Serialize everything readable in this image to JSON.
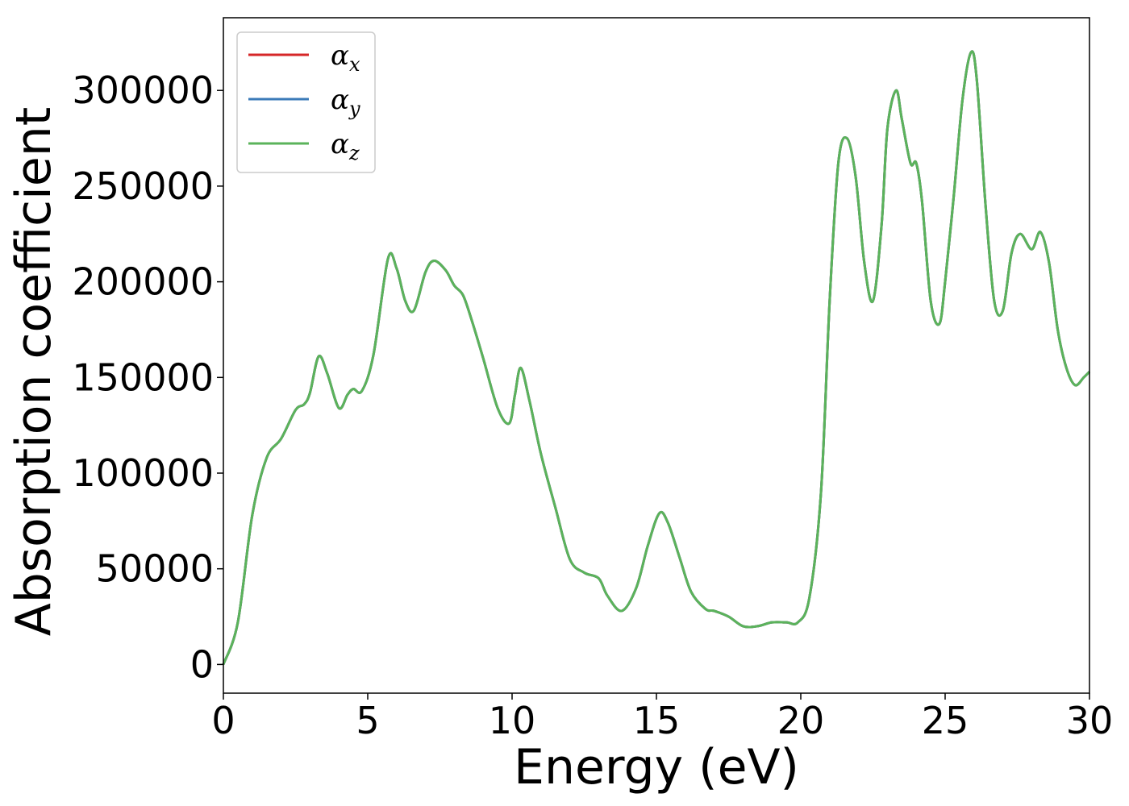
{
  "chart_data": {
    "type": "line",
    "xlabel": "Energy (eV)",
    "ylabel": "Absorption coefficient",
    "xlim": [
      0,
      30
    ],
    "ylim": [
      -15000,
      338000
    ],
    "xticks": [
      0,
      5,
      10,
      15,
      20,
      25,
      30
    ],
    "yticks": [
      0,
      50000,
      100000,
      150000,
      200000,
      250000,
      300000
    ],
    "grid": false,
    "legend_position": "top-left",
    "x": [
      0,
      0.5,
      1.0,
      1.5,
      2.0,
      2.5,
      2.8,
      3.0,
      3.3,
      3.6,
      4.0,
      4.3,
      4.5,
      4.8,
      5.2,
      5.7,
      6.0,
      6.3,
      6.6,
      7.0,
      7.3,
      7.7,
      8.0,
      8.3,
      8.6,
      9.0,
      9.5,
      9.9,
      10.1,
      10.3,
      10.6,
      11.0,
      11.5,
      12.0,
      12.5,
      13.0,
      13.3,
      13.8,
      14.3,
      14.7,
      15.1,
      15.4,
      15.8,
      16.2,
      16.7,
      17.0,
      17.5,
      18.0,
      18.5,
      19.0,
      19.5,
      19.9,
      20.3,
      20.7,
      21.0,
      21.3,
      21.6,
      21.9,
      22.2,
      22.5,
      22.8,
      23.0,
      23.3,
      23.5,
      23.8,
      24.0,
      24.2,
      24.5,
      24.8,
      25.0,
      25.3,
      25.6,
      25.9,
      26.1,
      26.4,
      26.7,
      27.0,
      27.3,
      27.6,
      28.0,
      28.3,
      28.6,
      28.9,
      29.2,
      29.5,
      29.8,
      30.0
    ],
    "series": [
      {
        "name": "α",
        "subscript": "x",
        "color": "#d62728",
        "values": [
          0,
          22000,
          78000,
          108000,
          118000,
          133000,
          136000,
          142000,
          161000,
          152000,
          134000,
          141000,
          144000,
          143000,
          162000,
          212000,
          207000,
          190000,
          185000,
          205000,
          211000,
          206000,
          198000,
          193000,
          180000,
          160000,
          134000,
          126000,
          141000,
          155000,
          138000,
          110000,
          82000,
          55000,
          48000,
          45000,
          36000,
          28000,
          40000,
          62000,
          79000,
          74000,
          56000,
          38000,
          29000,
          28000,
          25000,
          20000,
          20000,
          22000,
          22000,
          22000,
          35000,
          90000,
          190000,
          262000,
          275000,
          255000,
          210000,
          190000,
          230000,
          280000,
          300000,
          285000,
          262000,
          262000,
          242000,
          190000,
          178000,
          200000,
          245000,
          295000,
          320000,
          305000,
          240000,
          190000,
          185000,
          215000,
          225000,
          217000,
          226000,
          210000,
          175000,
          155000,
          146000,
          150000,
          153000
        ]
      },
      {
        "name": "α",
        "subscript": "y",
        "color": "#3a7ab8",
        "values": [
          0,
          22000,
          78000,
          108000,
          118000,
          133000,
          136000,
          142000,
          161000,
          152000,
          134000,
          141000,
          144000,
          143000,
          162000,
          212000,
          207000,
          190000,
          185000,
          205000,
          211000,
          206000,
          198000,
          193000,
          180000,
          160000,
          134000,
          126000,
          141000,
          155000,
          138000,
          110000,
          82000,
          55000,
          48000,
          45000,
          36000,
          28000,
          40000,
          62000,
          79000,
          74000,
          56000,
          38000,
          29000,
          28000,
          25000,
          20000,
          20000,
          22000,
          22000,
          22000,
          35000,
          90000,
          190000,
          262000,
          275000,
          255000,
          210000,
          190000,
          230000,
          280000,
          300000,
          285000,
          262000,
          262000,
          242000,
          190000,
          178000,
          200000,
          245000,
          295000,
          320000,
          305000,
          240000,
          190000,
          185000,
          215000,
          225000,
          217000,
          226000,
          210000,
          175000,
          155000,
          146000,
          150000,
          153000
        ]
      },
      {
        "name": "α",
        "subscript": "z",
        "color": "#5bb35b",
        "values": [
          0,
          22000,
          78000,
          108000,
          118000,
          133000,
          136000,
          142000,
          161000,
          152000,
          134000,
          141000,
          144000,
          143000,
          162000,
          212000,
          207000,
          190000,
          185000,
          205000,
          211000,
          206000,
          198000,
          193000,
          180000,
          160000,
          134000,
          126000,
          141000,
          155000,
          138000,
          110000,
          82000,
          55000,
          48000,
          45000,
          36000,
          28000,
          40000,
          62000,
          79000,
          74000,
          56000,
          38000,
          29000,
          28000,
          25000,
          20000,
          20000,
          22000,
          22000,
          22000,
          35000,
          90000,
          190000,
          262000,
          275000,
          255000,
          210000,
          190000,
          230000,
          280000,
          300000,
          285000,
          262000,
          262000,
          242000,
          190000,
          178000,
          200000,
          245000,
          295000,
          320000,
          305000,
          240000,
          190000,
          185000,
          215000,
          225000,
          217000,
          226000,
          210000,
          175000,
          155000,
          146000,
          150000,
          153000
        ]
      }
    ]
  }
}
